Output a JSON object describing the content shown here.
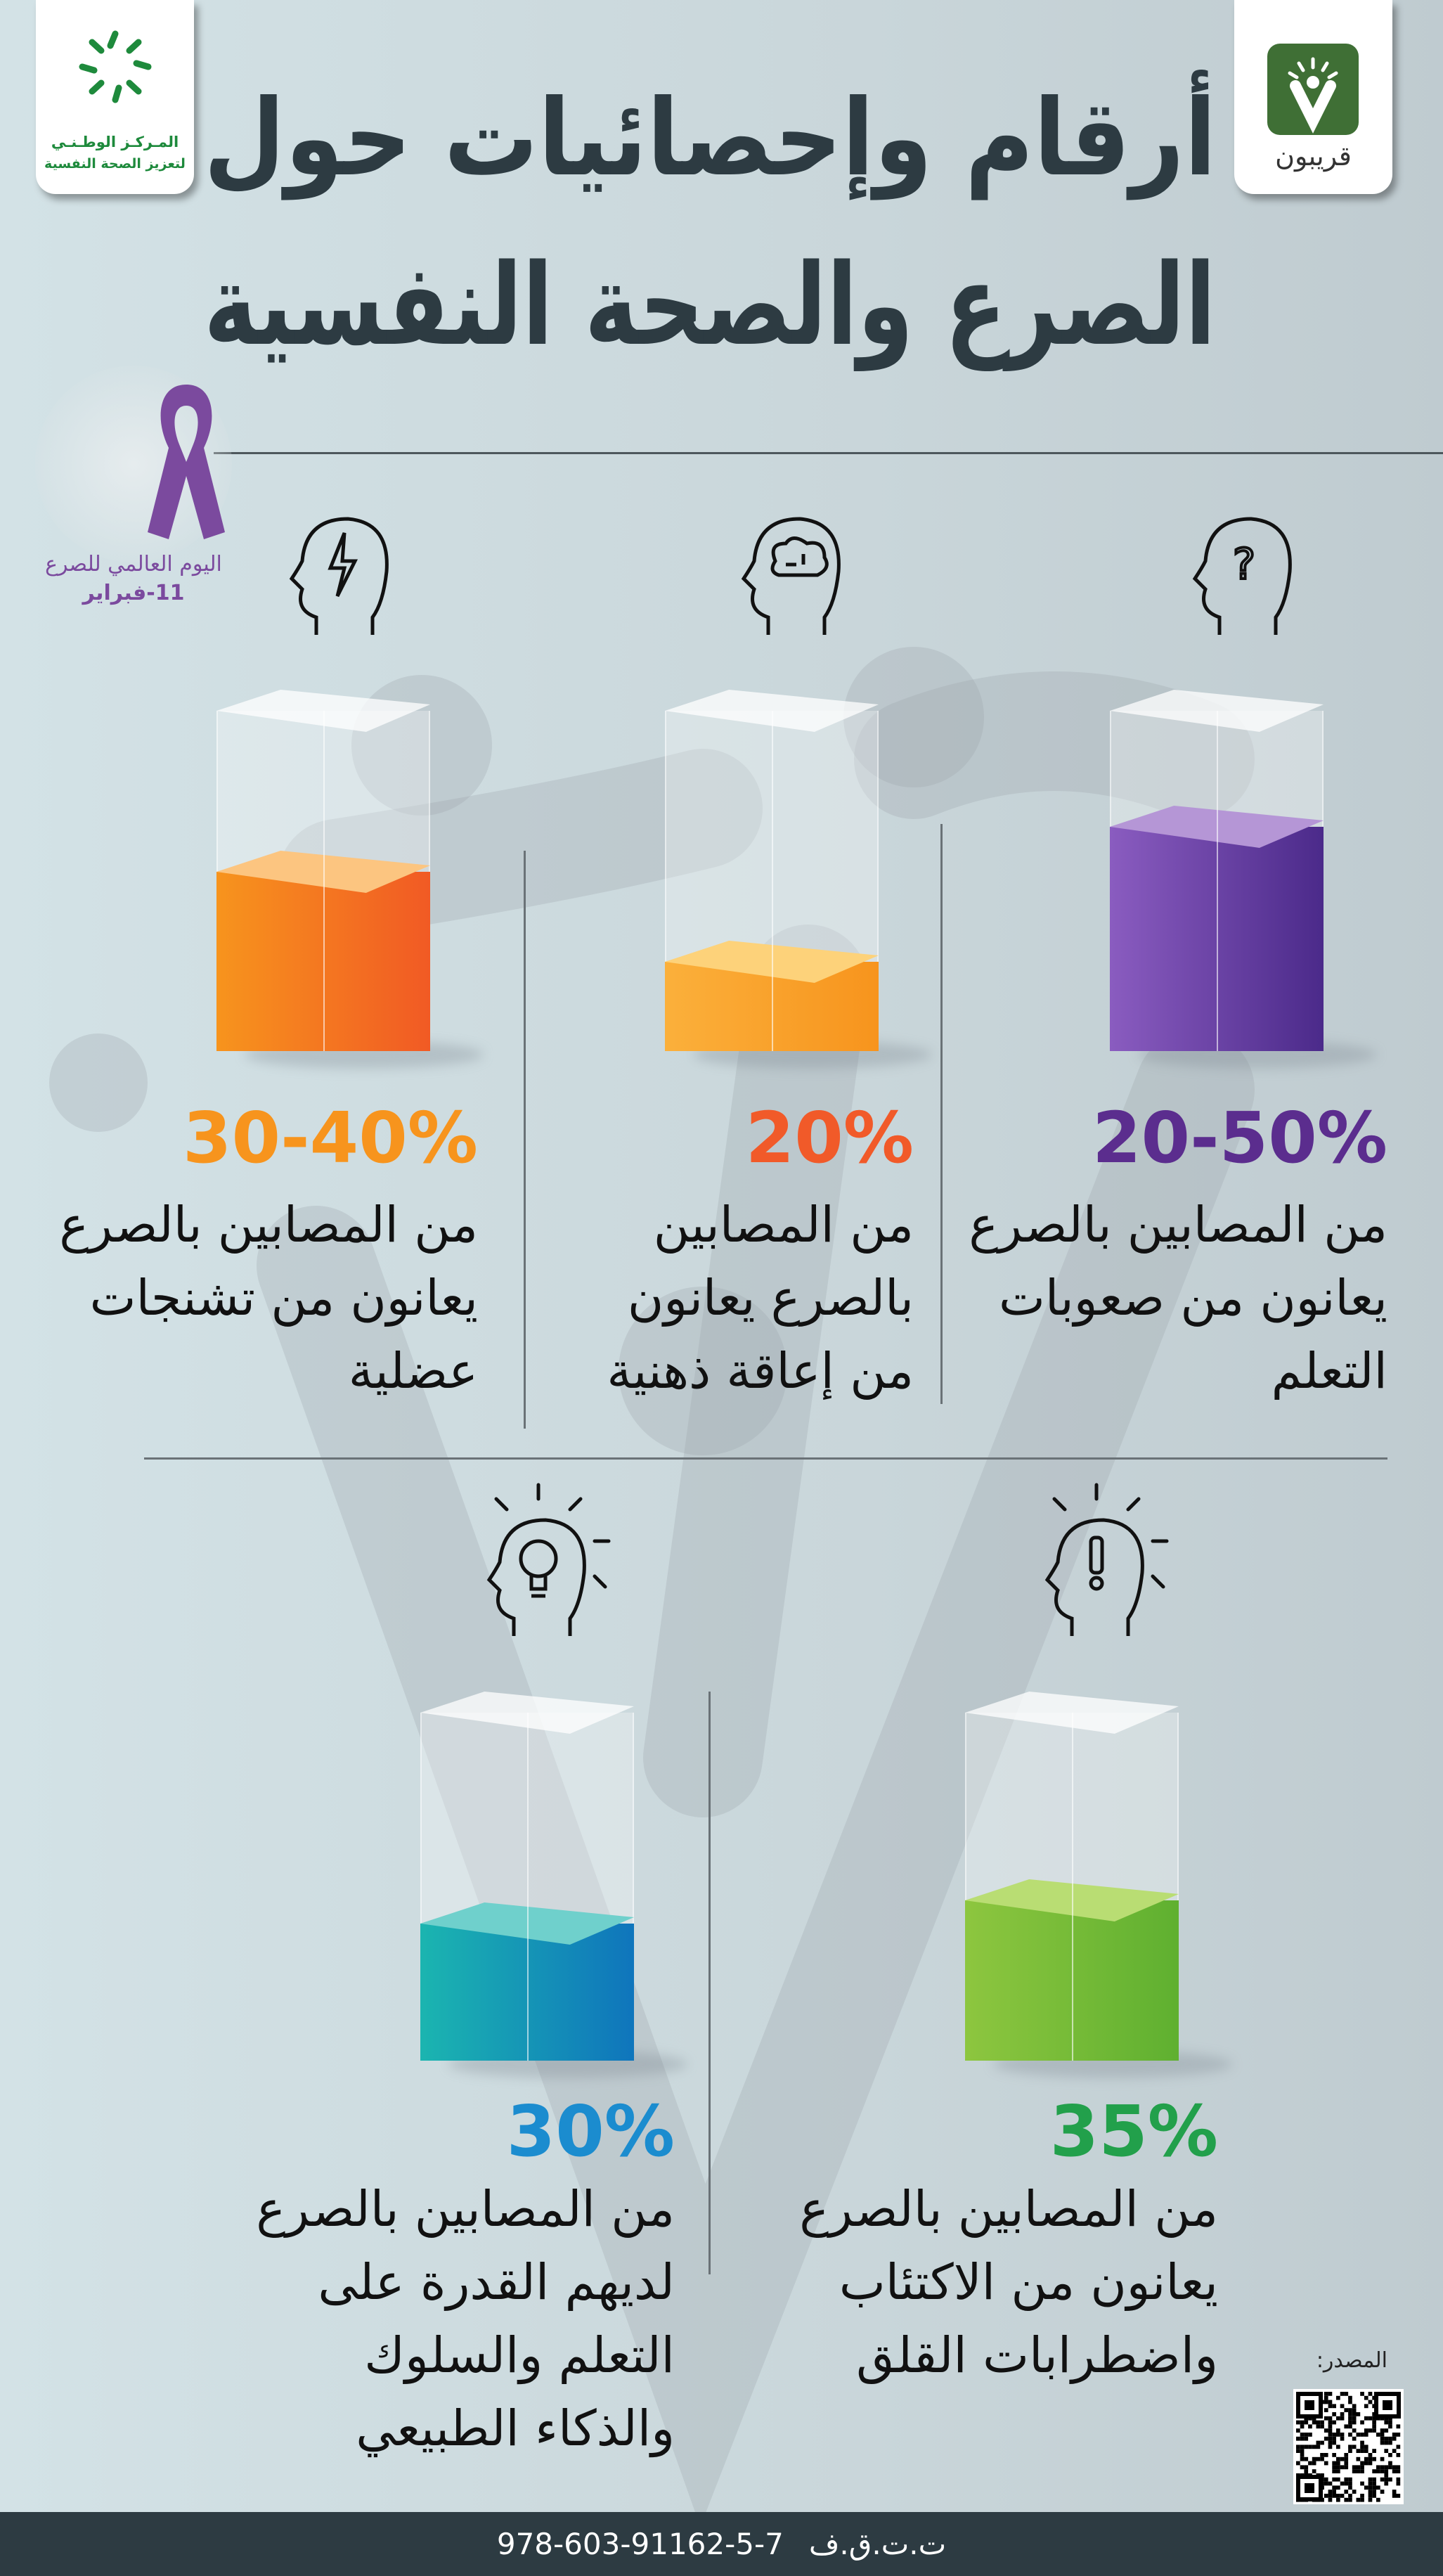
{
  "header": {
    "title_line1": "أرقام وإحصائيات حول",
    "title_line2": "الصرع والصحة النفسية",
    "left_logo": {
      "line1": "المـركـز الوطـنـي",
      "line2": "لتعزيز الصحة النفسية",
      "icon": "star-ring-logo",
      "color": "#1e8a3c"
    },
    "right_logo": {
      "label": "قريبون",
      "icon": "qaribon-logo",
      "color": "#3f6f35"
    }
  },
  "awareness": {
    "icon": "purple-ribbon-icon",
    "line1": "اليوم العالمي للصرع",
    "line2": "11-فبراير",
    "color": "#7b4a9e"
  },
  "stats": [
    {
      "icon": "head-question-icon",
      "percent": "20-50%",
      "color": "#5b2d8e",
      "fill_percent": 50,
      "lines": [
        "من المصابين بالصرع",
        "يعانون من صعوبات",
        "التعلم"
      ]
    },
    {
      "icon": "head-brain-icon",
      "percent": "20%",
      "color": "#f15a29",
      "fill_percent": 20,
      "lines": [
        "من المصابين",
        "بالصرع يعانون",
        "من إعاقة ذهنية"
      ]
    },
    {
      "icon": "head-lightning-icon",
      "percent": "30-40%",
      "color": "#f7941d",
      "fill_percent": 40,
      "lines": [
        "من المصابين بالصرع",
        "يعانون من تشنجات",
        "عضلية"
      ]
    },
    {
      "icon": "head-exclamation-icon",
      "percent": "35%",
      "color": "#22a04b",
      "fill_percent": 35,
      "lines": [
        "من المصابين بالصرع",
        "يعانون من الاكتئاب",
        "واضطرابات القلق"
      ]
    },
    {
      "icon": "head-lightbulb-icon",
      "percent": "30%",
      "color": "#1b8ccf",
      "fill_percent": 30,
      "lines": [
        "من المصابين بالصرع",
        "لديهم القدرة على",
        "التعلم والسلوك",
        "والذكاء الطبيعي"
      ]
    }
  ],
  "source": {
    "label": "المصدر:",
    "icon": "qr-code-icon"
  },
  "footer": {
    "isbn": "978-603-91162-5-7",
    "label": "ت.ت.ق.ف"
  }
}
